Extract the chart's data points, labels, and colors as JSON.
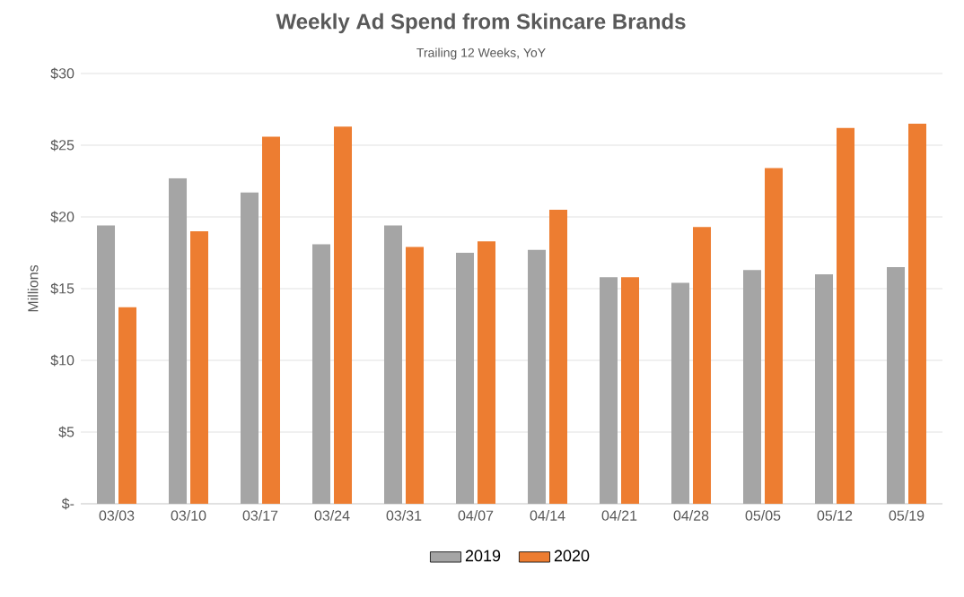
{
  "chart_data": {
    "type": "bar",
    "title": "Weekly Ad Spend from Skincare Brands",
    "subtitle": "Trailing 12 Weeks, YoY",
    "ylabel": "Millions",
    "categories": [
      "03/03",
      "03/10",
      "03/17",
      "03/24",
      "03/31",
      "04/07",
      "04/14",
      "04/21",
      "04/28",
      "05/05",
      "05/12",
      "05/19"
    ],
    "series": [
      {
        "name": "2019",
        "color": "#a5a5a5",
        "values": [
          19.4,
          22.7,
          21.7,
          18.1,
          19.4,
          17.5,
          17.7,
          15.8,
          15.4,
          16.3,
          16.0,
          16.5
        ]
      },
      {
        "name": "2020",
        "color": "#ed7d31",
        "values": [
          13.7,
          19.0,
          25.6,
          26.3,
          17.9,
          18.3,
          20.5,
          15.8,
          19.3,
          23.4,
          26.2,
          26.5
        ]
      }
    ],
    "ylim": [
      0,
      30
    ],
    "yticks": [
      {
        "value": 0,
        "label": "$-"
      },
      {
        "value": 5,
        "label": "$5"
      },
      {
        "value": 10,
        "label": "$10"
      },
      {
        "value": 15,
        "label": "$15"
      },
      {
        "value": 20,
        "label": "$20"
      },
      {
        "value": 25,
        "label": "$25"
      },
      {
        "value": 30,
        "label": "$30"
      }
    ],
    "grid": "y",
    "legend": "bottom"
  }
}
